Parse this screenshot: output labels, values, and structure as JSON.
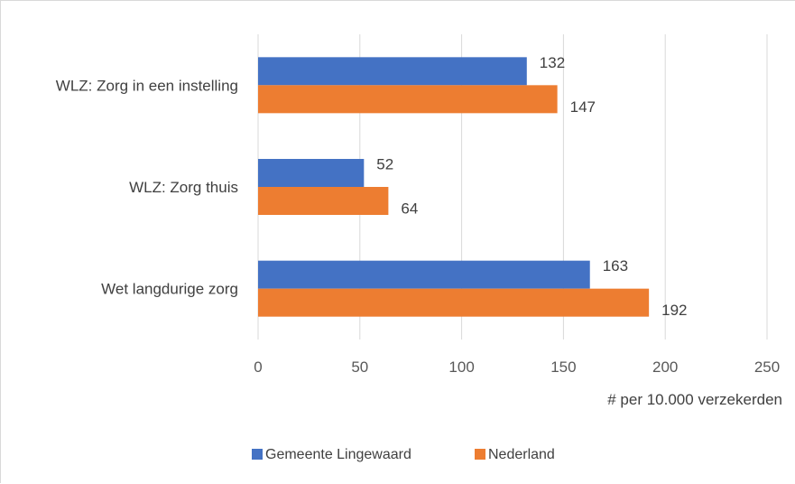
{
  "chart_data": {
    "type": "bar",
    "orientation": "horizontal",
    "categories": [
      "WLZ: Zorg in een instelling",
      "WLZ: Zorg thuis",
      "Wet langdurige zorg"
    ],
    "series": [
      {
        "name": "Gemeente Lingewaard",
        "values": [
          132,
          52,
          163
        ],
        "color": "#4472c4"
      },
      {
        "name": "Nederland",
        "values": [
          147,
          64,
          192
        ],
        "color": "#ed7d31"
      }
    ],
    "xlabel": "# per 10.000 verzekerden",
    "xlim": [
      0,
      250
    ],
    "xticks": [
      0,
      50,
      100,
      150,
      200,
      250
    ],
    "grid": true,
    "legend": "bottom"
  }
}
